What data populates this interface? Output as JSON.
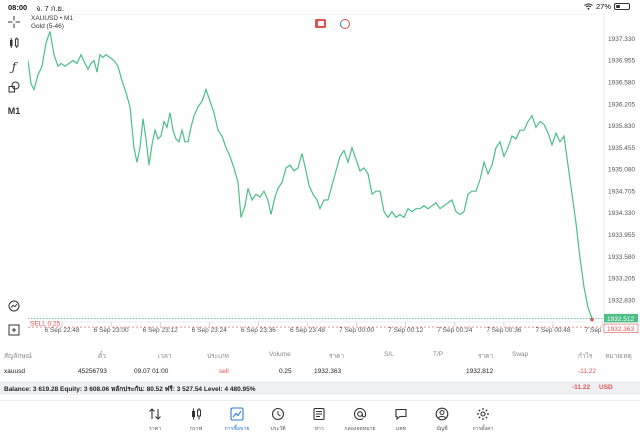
{
  "status": {
    "time": "08:00",
    "date": "จ. 7 ก.ย.",
    "battery": "27%"
  },
  "toolbar": {
    "timeframe": "M1"
  },
  "chart": {
    "symbol_line": "XAUUSD • M1",
    "indicator_line": "Gold (5-46)",
    "sell_label": "SELL 0.25",
    "current_price": "1932.512",
    "sell_price": "1932.363",
    "line_color": "#4cbf86",
    "sell_color": "#e05252"
  },
  "chart_data": {
    "type": "line",
    "y_ticks": [
      "1937.330",
      "1936.955",
      "1936.580",
      "1936.205",
      "1935.830",
      "1935.455",
      "1935.080",
      "1934.705",
      "1934.330",
      "1933.955",
      "1933.580",
      "1933.205",
      "1932.830"
    ],
    "x_ticks": [
      "6 Sep 22:48",
      "6 Sep 23:00",
      "6 Sep 23:12",
      "6 Sep 23:24",
      "6 Sep 23:36",
      "6 Sep 23:48",
      "7 Sep 00:00",
      "7 Sep 00:12",
      "7 Sep 00:24",
      "7 Sep 00:36",
      "7 Sep 00:48",
      "7 Sep 01:00"
    ],
    "ylim": [
      1932.45,
      1937.75
    ],
    "x_range": [
      0,
      576
    ],
    "series": [
      {
        "values": [
          [
            0,
            1936.95
          ],
          [
            3,
            1936.55
          ],
          [
            6,
            1936.45
          ],
          [
            10,
            1936.7
          ],
          [
            14,
            1936.85
          ],
          [
            18,
            1937.25
          ],
          [
            22,
            1937.45
          ],
          [
            26,
            1937.05
          ],
          [
            30,
            1936.85
          ],
          [
            33,
            1936.9
          ],
          [
            37,
            1936.85
          ],
          [
            41,
            1936.9
          ],
          [
            45,
            1936.95
          ],
          [
            49,
            1936.9
          ],
          [
            53,
            1937.05
          ],
          [
            57,
            1936.9
          ],
          [
            60,
            1936.8
          ],
          [
            63,
            1936.9
          ],
          [
            66,
            1936.95
          ],
          [
            69,
            1936.75
          ],
          [
            72,
            1937.05
          ],
          [
            75,
            1937.0
          ],
          [
            78,
            1937.05
          ],
          [
            82,
            1937.0
          ],
          [
            86,
            1936.95
          ],
          [
            90,
            1936.85
          ],
          [
            94,
            1936.6
          ],
          [
            98,
            1936.4
          ],
          [
            102,
            1936.15
          ],
          [
            106,
            1935.45
          ],
          [
            109,
            1935.2
          ],
          [
            112,
            1935.45
          ],
          [
            115,
            1935.95
          ],
          [
            118,
            1935.6
          ],
          [
            121,
            1935.15
          ],
          [
            124,
            1935.5
          ],
          [
            127,
            1935.75
          ],
          [
            130,
            1935.6
          ],
          [
            133,
            1935.65
          ],
          [
            136,
            1935.9
          ],
          [
            139,
            1935.8
          ],
          [
            142,
            1936.05
          ],
          [
            145,
            1935.75
          ],
          [
            148,
            1935.6
          ],
          [
            151,
            1935.55
          ],
          [
            154,
            1935.75
          ],
          [
            157,
            1935.55
          ],
          [
            160,
            1935.55
          ],
          [
            163,
            1935.8
          ],
          [
            166,
            1936.0
          ],
          [
            170,
            1936.15
          ],
          [
            174,
            1936.25
          ],
          [
            178,
            1936.45
          ],
          [
            182,
            1936.25
          ],
          [
            186,
            1936.05
          ],
          [
            190,
            1935.75
          ],
          [
            194,
            1935.65
          ],
          [
            198,
            1935.45
          ],
          [
            202,
            1935.3
          ],
          [
            206,
            1935.1
          ],
          [
            210,
            1934.85
          ],
          [
            213,
            1934.25
          ],
          [
            217,
            1934.45
          ],
          [
            220,
            1934.75
          ],
          [
            224,
            1934.55
          ],
          [
            228,
            1934.65
          ],
          [
            232,
            1934.6
          ],
          [
            236,
            1934.7
          ],
          [
            240,
            1934.55
          ],
          [
            243,
            1934.3
          ],
          [
            247,
            1934.6
          ],
          [
            250,
            1934.75
          ],
          [
            254,
            1934.85
          ],
          [
            258,
            1935.1
          ],
          [
            262,
            1935.15
          ],
          [
            266,
            1935.05
          ],
          [
            270,
            1935.1
          ],
          [
            274,
            1935.35
          ],
          [
            278,
            1935.05
          ],
          [
            281,
            1934.8
          ],
          [
            285,
            1934.65
          ],
          [
            289,
            1934.55
          ],
          [
            292,
            1934.4
          ],
          [
            296,
            1934.55
          ],
          [
            300,
            1934.55
          ],
          [
            304,
            1934.8
          ],
          [
            308,
            1935.05
          ],
          [
            312,
            1935.3
          ],
          [
            316,
            1935.4
          ],
          [
            320,
            1935.2
          ],
          [
            324,
            1935.45
          ],
          [
            328,
            1935.25
          ],
          [
            332,
            1935.05
          ],
          [
            336,
            1935.1
          ],
          [
            340,
            1935.0
          ],
          [
            344,
            1934.65
          ],
          [
            348,
            1934.7
          ],
          [
            352,
            1934.7
          ],
          [
            356,
            1934.35
          ],
          [
            360,
            1934.25
          ],
          [
            364,
            1934.35
          ],
          [
            368,
            1934.25
          ],
          [
            372,
            1934.3
          ],
          [
            376,
            1934.25
          ],
          [
            380,
            1934.4
          ],
          [
            384,
            1934.35
          ],
          [
            388,
            1934.4
          ],
          [
            392,
            1934.4
          ],
          [
            396,
            1934.45
          ],
          [
            400,
            1934.4
          ],
          [
            404,
            1934.45
          ],
          [
            408,
            1934.5
          ],
          [
            412,
            1934.4
          ],
          [
            416,
            1934.45
          ],
          [
            420,
            1934.5
          ],
          [
            424,
            1934.55
          ],
          [
            428,
            1934.35
          ],
          [
            432,
            1934.3
          ],
          [
            436,
            1934.35
          ],
          [
            440,
            1934.65
          ],
          [
            444,
            1934.7
          ],
          [
            448,
            1934.7
          ],
          [
            452,
            1934.9
          ],
          [
            456,
            1935.2
          ],
          [
            460,
            1935.0
          ],
          [
            464,
            1935.15
          ],
          [
            468,
            1935.45
          ],
          [
            472,
            1935.55
          ],
          [
            476,
            1935.3
          ],
          [
            480,
            1935.45
          ],
          [
            484,
            1935.65
          ],
          [
            488,
            1935.6
          ],
          [
            492,
            1935.75
          ],
          [
            496,
            1935.75
          ],
          [
            500,
            1935.9
          ],
          [
            504,
            1936.0
          ],
          [
            508,
            1935.8
          ],
          [
            512,
            1935.9
          ],
          [
            516,
            1935.85
          ],
          [
            520,
            1935.7
          ],
          [
            524,
            1935.5
          ],
          [
            528,
            1935.7
          ],
          [
            532,
            1935.55
          ],
          [
            536,
            1935.65
          ],
          [
            540,
            1935.15
          ],
          [
            544,
            1934.65
          ],
          [
            548,
            1934.15
          ],
          [
            552,
            1933.55
          ],
          [
            556,
            1933.05
          ],
          [
            560,
            1932.7
          ],
          [
            564,
            1932.51
          ]
        ]
      }
    ]
  },
  "table": {
    "headers": [
      "สัญลักษณ์",
      "ตั๋ว",
      "เวลา",
      "ประเภท",
      "Volume",
      "ราคา",
      "S/L",
      "T/P",
      "ราคา",
      "Swap",
      "กำไร",
      "หมายเหตุ"
    ],
    "row": {
      "symbol": "xauusd",
      "ticket": "45256793",
      "time": "09.07 01:00",
      "type": "sell",
      "volume": "0.25",
      "open_price": "1932.363",
      "current_price": "1932.812",
      "profit": "-11.22"
    },
    "balance_text": "Balance: 3 619.28 Equity: 3 608.06 หลักประกัน: 80.52 ฟรี: 3 527.54 Level: 4 480.95%",
    "balance_profit": "-11.22",
    "currency": "USD"
  },
  "nav": [
    {
      "label": "ราคา",
      "icon": "arrows-updown-icon"
    },
    {
      "label": "กราฟ",
      "icon": "candles-icon"
    },
    {
      "label": "การซื้อขาย",
      "icon": "trade-chart-icon"
    },
    {
      "label": "ประวัติ",
      "icon": "history-icon"
    },
    {
      "label": "ข่าว",
      "icon": "news-icon"
    },
    {
      "label": "กล่องจดหมาย",
      "icon": "mail-icon"
    },
    {
      "label": "แชท",
      "icon": "chat-icon"
    },
    {
      "label": "บัญชี",
      "icon": "account-icon"
    },
    {
      "label": "การตั้งค่า",
      "icon": "settings-icon"
    }
  ]
}
